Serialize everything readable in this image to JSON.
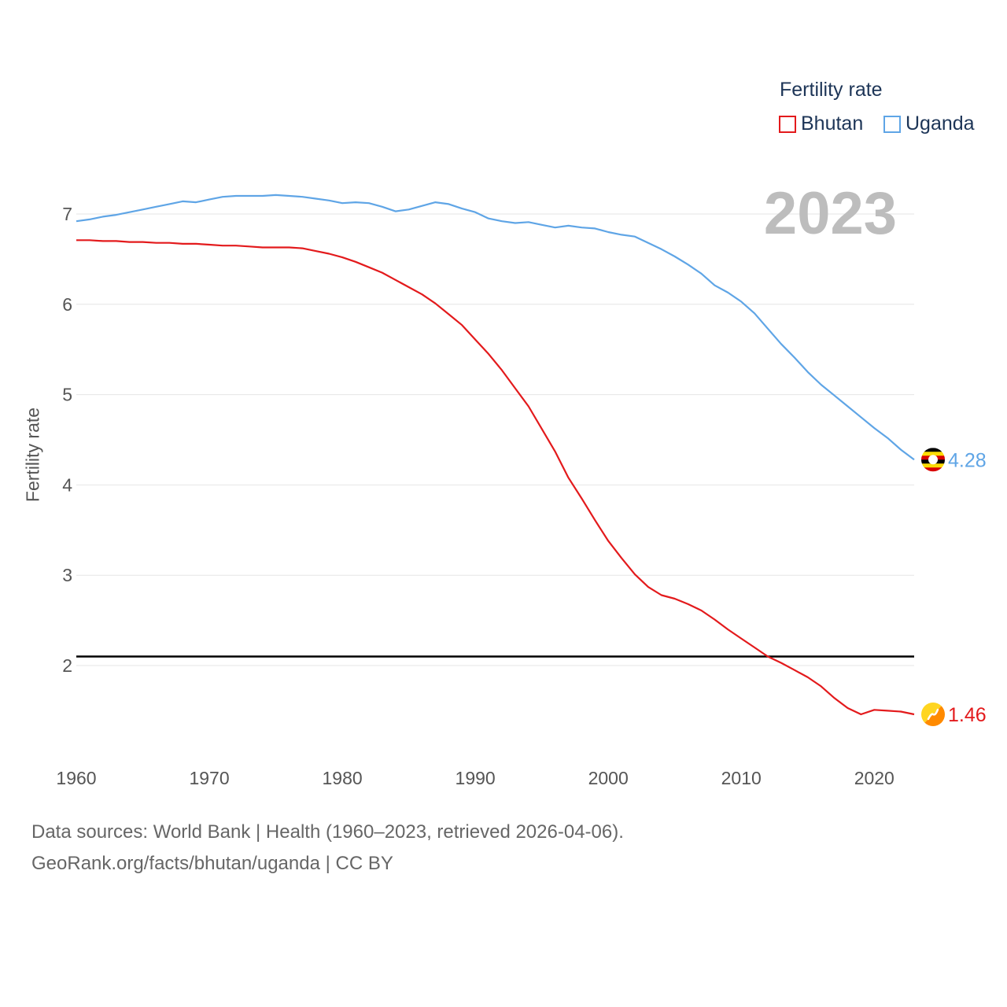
{
  "legend": {
    "title": "Fertility rate",
    "items": [
      {
        "label": "Bhutan",
        "color": "#e31a1c"
      },
      {
        "label": "Uganda",
        "color": "#5fa5e6"
      }
    ]
  },
  "year_display": "2023",
  "reference_line": {
    "value": 2.1,
    "color": "#000000"
  },
  "footer": {
    "line1": "Data sources: World Bank | Health (1960–2023, retrieved 2026-04-06).",
    "line2": "GeoRank.org/facts/bhutan/uganda | CC BY"
  },
  "icons": {
    "uganda": "uganda-flag-icon",
    "bhutan": "bhutan-flag-icon"
  },
  "chart_data": {
    "type": "line",
    "title": "",
    "xlabel": "",
    "ylabel": "Fertility rate",
    "xlim": [
      1960,
      2023
    ],
    "ylim": [
      1.0,
      7.6
    ],
    "x_ticks": [
      1960,
      1970,
      1980,
      1990,
      2000,
      2010,
      2020
    ],
    "y_ticks": [
      2,
      3,
      4,
      5,
      6,
      7
    ],
    "grid": true,
    "x": [
      1960,
      1961,
      1962,
      1963,
      1964,
      1965,
      1966,
      1967,
      1968,
      1969,
      1970,
      1971,
      1972,
      1973,
      1974,
      1975,
      1976,
      1977,
      1978,
      1979,
      1980,
      1981,
      1982,
      1983,
      1984,
      1985,
      1986,
      1987,
      1988,
      1989,
      1990,
      1991,
      1992,
      1993,
      1994,
      1995,
      1996,
      1997,
      1998,
      1999,
      2000,
      2001,
      2002,
      2003,
      2004,
      2005,
      2006,
      2007,
      2008,
      2009,
      2010,
      2011,
      2012,
      2013,
      2014,
      2015,
      2016,
      2017,
      2018,
      2019,
      2020,
      2021,
      2022,
      2023
    ],
    "series": [
      {
        "name": "Bhutan",
        "color": "#e31a1c",
        "end_label": "1.46",
        "values": [
          6.71,
          6.71,
          6.7,
          6.7,
          6.69,
          6.69,
          6.68,
          6.68,
          6.67,
          6.67,
          6.66,
          6.65,
          6.65,
          6.64,
          6.63,
          6.63,
          6.63,
          6.62,
          6.59,
          6.56,
          6.52,
          6.47,
          6.41,
          6.35,
          6.27,
          6.19,
          6.11,
          6.01,
          5.89,
          5.77,
          5.61,
          5.45,
          5.27,
          5.07,
          4.87,
          4.62,
          4.37,
          4.08,
          3.85,
          3.61,
          3.38,
          3.19,
          3.01,
          2.87,
          2.78,
          2.74,
          2.68,
          2.61,
          2.51,
          2.4,
          2.3,
          2.2,
          2.1,
          2.03,
          1.95,
          1.87,
          1.77,
          1.64,
          1.53,
          1.46,
          1.51,
          1.5,
          1.49,
          1.46
        ]
      },
      {
        "name": "Uganda",
        "color": "#5fa5e6",
        "end_label": "4.28",
        "values": [
          6.92,
          6.94,
          6.97,
          6.99,
          7.02,
          7.05,
          7.08,
          7.11,
          7.14,
          7.13,
          7.16,
          7.19,
          7.2,
          7.2,
          7.2,
          7.21,
          7.2,
          7.19,
          7.17,
          7.15,
          7.12,
          7.13,
          7.12,
          7.08,
          7.03,
          7.05,
          7.09,
          7.13,
          7.11,
          7.06,
          7.02,
          6.95,
          6.92,
          6.9,
          6.91,
          6.88,
          6.85,
          6.87,
          6.85,
          6.84,
          6.8,
          6.77,
          6.75,
          6.68,
          6.61,
          6.53,
          6.44,
          6.34,
          6.21,
          6.13,
          6.03,
          5.9,
          5.73,
          5.56,
          5.41,
          5.25,
          5.11,
          4.99,
          4.87,
          4.75,
          4.63,
          4.52,
          4.39,
          4.28
        ]
      }
    ]
  }
}
